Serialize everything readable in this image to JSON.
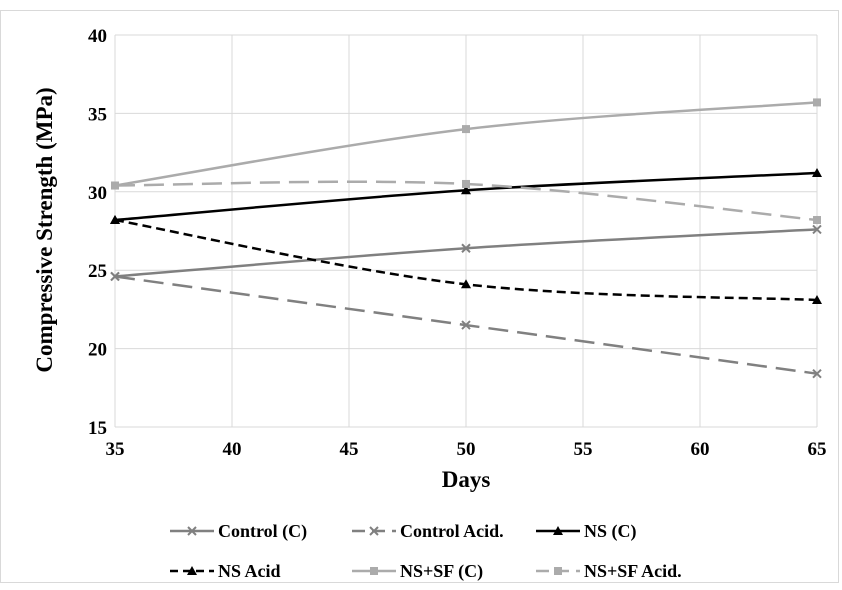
{
  "chart_data": {
    "type": "line",
    "title": "",
    "xlabel": "Days",
    "ylabel": "Compressive Strength (MPa)",
    "xlim": [
      35,
      65
    ],
    "ylim": [
      15,
      40
    ],
    "x_ticks": [
      "35",
      "40",
      "45",
      "50",
      "55",
      "60",
      "65"
    ],
    "y_ticks": [
      "15",
      "20",
      "25",
      "30",
      "35",
      "40"
    ],
    "grid": true,
    "legend_position": "bottom",
    "x": [
      35,
      50,
      65
    ],
    "series": [
      {
        "name": "Control (C)",
        "values": [
          24.6,
          26.4,
          27.6
        ],
        "color": "#808080",
        "dash": "solid",
        "marker": "x"
      },
      {
        "name": "Control Acid.",
        "values": [
          24.6,
          21.5,
          18.4
        ],
        "color": "#808080",
        "dash": "long-dash",
        "marker": "x"
      },
      {
        "name": "NS (C)",
        "values": [
          28.2,
          30.1,
          31.2
        ],
        "color": "#000000",
        "dash": "solid",
        "marker": "triangle"
      },
      {
        "name": "NS Acid",
        "values": [
          28.2,
          24.1,
          23.1
        ],
        "color": "#000000",
        "dash": "dash",
        "marker": "triangle"
      },
      {
        "name": "NS+SF (C)",
        "values": [
          30.4,
          34.0,
          35.7
        ],
        "color": "#ababab",
        "dash": "solid",
        "marker": "square"
      },
      {
        "name": "NS+SF Acid.",
        "values": [
          30.4,
          30.5,
          28.2
        ],
        "color": "#ababab",
        "dash": "long-dash",
        "marker": "square"
      }
    ]
  }
}
